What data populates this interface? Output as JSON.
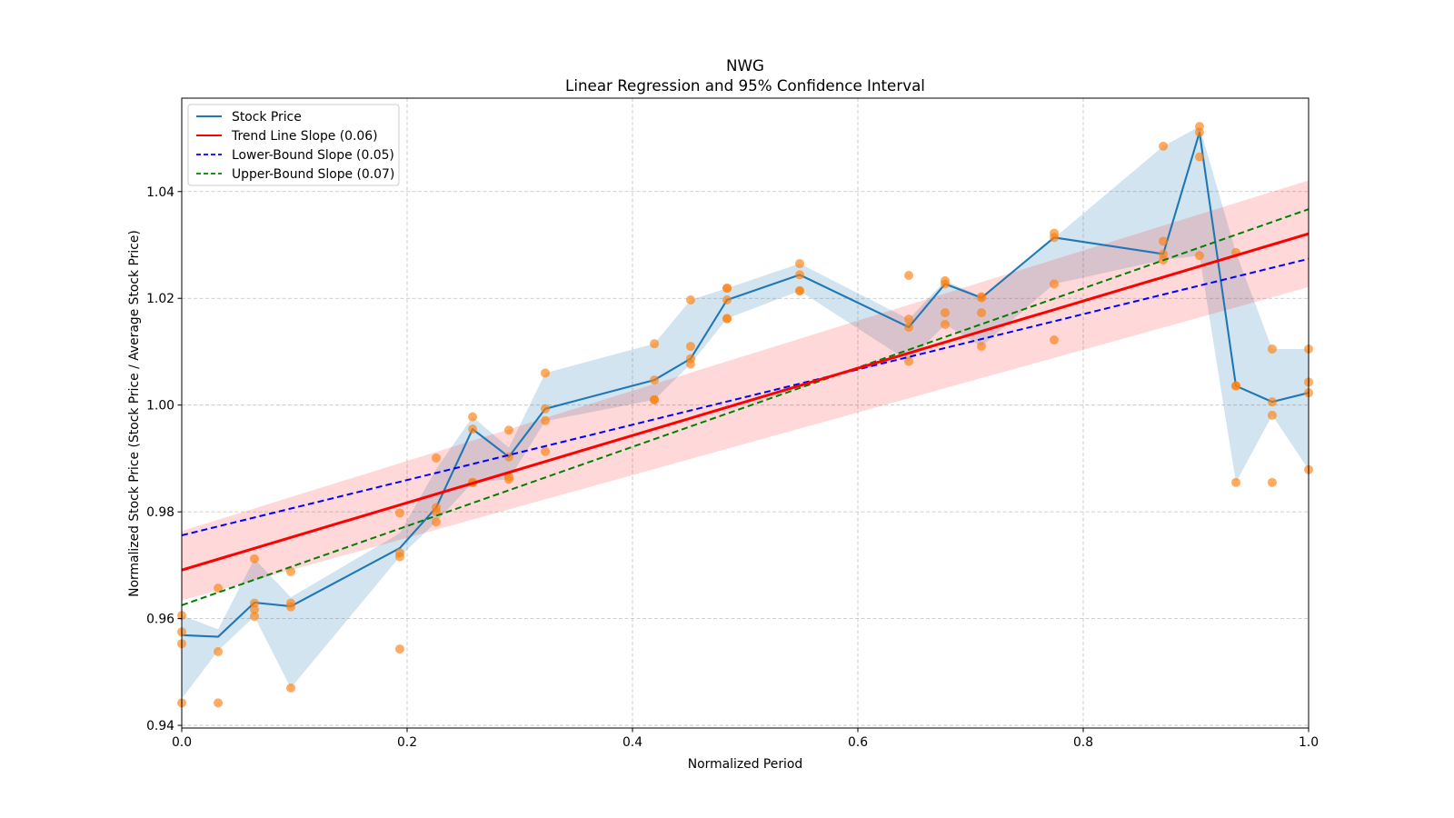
{
  "chart_data": {
    "type": "line",
    "title": "NWG",
    "subtitle": "Linear Regression and 95% Confidence Interval",
    "xlabel": "Normalized Period",
    "ylabel": "Normalized Stock Price (Stock Price / Average Stock Price)",
    "xlim": [
      0.0,
      1.0
    ],
    "ylim": [
      0.9395,
      1.0575
    ],
    "grid": true,
    "legend_position": "top-left",
    "x_ticks": [
      {
        "value": 0.0,
        "label": "0.0"
      },
      {
        "value": 0.2,
        "label": "0.2"
      },
      {
        "value": 0.4,
        "label": "0.4"
      },
      {
        "value": 0.6,
        "label": "0.6"
      },
      {
        "value": 0.8,
        "label": "0.8"
      },
      {
        "value": 1.0,
        "label": "1.0"
      }
    ],
    "y_ticks": [
      {
        "value": 0.94,
        "label": "0.94"
      },
      {
        "value": 0.96,
        "label": "0.96"
      },
      {
        "value": 0.98,
        "label": "0.98"
      },
      {
        "value": 1.0,
        "label": "1.00"
      },
      {
        "value": 1.02,
        "label": "1.02"
      },
      {
        "value": 1.04,
        "label": "1.04"
      }
    ],
    "colors": {
      "stock_line": "#1f77b4",
      "stock_band": "#1f77b4",
      "scatter": "#ff7f0e",
      "trend": "#ff0000",
      "trend_band": "#ff0000",
      "lower_bound": "#0000ff",
      "upper_bound": "#008000"
    },
    "legend": [
      {
        "label": "Stock Price",
        "color": "#1f77b4",
        "style": "solid"
      },
      {
        "label": "Trend Line Slope (0.06)",
        "color": "#ff0000",
        "style": "solid"
      },
      {
        "label": "Lower-Bound Slope (0.05)",
        "color": "#0000ff",
        "style": "dashed"
      },
      {
        "label": "Upper-Bound Slope (0.07)",
        "color": "#008000",
        "style": "dashed"
      }
    ],
    "series": [
      {
        "name": "Stock Price",
        "type": "line",
        "x": [
          0.0,
          0.0323,
          0.0645,
          0.0968,
          0.1935,
          0.2258,
          0.2581,
          0.2903,
          0.3226,
          0.4194,
          0.4516,
          0.4839,
          0.5484,
          0.6452,
          0.6774,
          0.7097,
          0.7742,
          0.871,
          0.9032,
          0.9355,
          0.9677,
          1.0
        ],
        "y": [
          0.9569,
          0.9566,
          0.963,
          0.9623,
          0.9732,
          0.9808,
          0.9955,
          0.9903,
          0.9993,
          1.0047,
          1.0087,
          1.0197,
          1.0244,
          1.0146,
          1.0227,
          1.0201,
          1.0314,
          1.0283,
          1.0511,
          1.0036,
          1.0006,
          1.0023
        ],
        "band_lower": [
          0.945,
          0.954,
          0.9604,
          0.947,
          0.9716,
          0.9781,
          0.9855,
          0.9861,
          0.997,
          1.001,
          1.0077,
          1.0162,
          1.0214,
          1.0082,
          1.0151,
          1.011,
          1.0227,
          1.0272,
          1.028,
          0.9855,
          0.9981,
          0.9879
        ],
        "band_upper": [
          0.9606,
          0.958,
          0.9712,
          0.964,
          0.976,
          0.988,
          0.9978,
          0.992,
          1.006,
          1.0115,
          1.0197,
          1.0219,
          1.0265,
          1.0161,
          1.0233,
          1.0203,
          1.0313,
          1.0485,
          1.0522,
          1.0286,
          1.0105,
          1.0105
        ]
      },
      {
        "name": "Observations",
        "type": "scatter",
        "points": [
          [
            0.0,
            0.9606
          ],
          [
            0.0,
            0.9553
          ],
          [
            0.0,
            0.9442
          ],
          [
            0.0,
            0.9575
          ],
          [
            0.0323,
            0.9657
          ],
          [
            0.0323,
            0.9538
          ],
          [
            0.0323,
            0.9442
          ],
          [
            0.0645,
            0.9712
          ],
          [
            0.0645,
            0.9629
          ],
          [
            0.0645,
            0.9617
          ],
          [
            0.0645,
            0.9604
          ],
          [
            0.0968,
            0.9688
          ],
          [
            0.0968,
            0.9629
          ],
          [
            0.0968,
            0.9622
          ],
          [
            0.0968,
            0.947
          ],
          [
            0.1935,
            0.9798
          ],
          [
            0.1935,
            0.9723
          ],
          [
            0.1935,
            0.9716
          ],
          [
            0.1935,
            0.9543
          ],
          [
            0.2258,
            0.9901
          ],
          [
            0.2258,
            0.9808
          ],
          [
            0.2258,
            0.98
          ],
          [
            0.2258,
            0.9781
          ],
          [
            0.2581,
            0.9978
          ],
          [
            0.2581,
            0.9955
          ],
          [
            0.2581,
            0.9855
          ],
          [
            0.2581,
            0.9855
          ],
          [
            0.2903,
            0.9953
          ],
          [
            0.2903,
            0.9903
          ],
          [
            0.2903,
            0.9866
          ],
          [
            0.2903,
            0.9861
          ],
          [
            0.3226,
            1.006
          ],
          [
            0.3226,
            0.9993
          ],
          [
            0.3226,
            0.9971
          ],
          [
            0.3226,
            0.9913
          ],
          [
            0.4194,
            1.0115
          ],
          [
            0.4194,
            1.0047
          ],
          [
            0.4194,
            1.001
          ],
          [
            0.4194,
            1.001
          ],
          [
            0.4516,
            1.0197
          ],
          [
            0.4516,
            1.011
          ],
          [
            0.4516,
            1.0087
          ],
          [
            0.4516,
            1.0077
          ],
          [
            0.4839,
            1.0219
          ],
          [
            0.4839,
            1.0219
          ],
          [
            0.4839,
            1.0197
          ],
          [
            0.4839,
            1.0162
          ],
          [
            0.4839,
            1.0162
          ],
          [
            0.5484,
            1.0265
          ],
          [
            0.5484,
            1.0244
          ],
          [
            0.5484,
            1.0214
          ],
          [
            0.5484,
            1.0214
          ],
          [
            0.6452,
            1.0243
          ],
          [
            0.6452,
            1.0161
          ],
          [
            0.6452,
            1.0146
          ],
          [
            0.6452,
            1.0082
          ],
          [
            0.6774,
            1.0233
          ],
          [
            0.6774,
            1.0227
          ],
          [
            0.6774,
            1.0173
          ],
          [
            0.6774,
            1.0151
          ],
          [
            0.7097,
            1.0203
          ],
          [
            0.7097,
            1.0201
          ],
          [
            0.7097,
            1.0173
          ],
          [
            0.7097,
            1.011
          ],
          [
            0.7742,
            1.0322
          ],
          [
            0.7742,
            1.0314
          ],
          [
            0.7742,
            1.0227
          ],
          [
            0.7742,
            1.0122
          ],
          [
            0.871,
            1.0485
          ],
          [
            0.871,
            1.0307
          ],
          [
            0.871,
            1.0283
          ],
          [
            0.871,
            1.0272
          ],
          [
            0.9032,
            1.0522
          ],
          [
            0.9032,
            1.0511
          ],
          [
            0.9032,
            1.0465
          ],
          [
            0.9032,
            1.028
          ],
          [
            0.9355,
            1.0286
          ],
          [
            0.9355,
            1.0036
          ],
          [
            0.9355,
            1.0036
          ],
          [
            0.9355,
            0.9855
          ],
          [
            0.9677,
            1.0105
          ],
          [
            0.9677,
            1.0006
          ],
          [
            0.9677,
            0.9981
          ],
          [
            0.9677,
            0.9855
          ],
          [
            1.0,
            1.0105
          ],
          [
            1.0,
            1.0043
          ],
          [
            1.0,
            1.0023
          ],
          [
            1.0,
            0.9879
          ]
        ]
      },
      {
        "name": "Trend Line Slope (0.06)",
        "type": "line",
        "x": [
          0.0,
          1.0
        ],
        "y": [
          0.9691,
          1.0321
        ],
        "band_lower": [
          0.9634,
          1.0221
        ],
        "band_upper": [
          0.9764,
          1.0421
        ]
      },
      {
        "name": "Lower-Bound Slope (0.05)",
        "type": "line",
        "x": [
          0.0,
          1.0
        ],
        "y": [
          0.9756,
          1.0274
        ]
      },
      {
        "name": "Upper-Bound Slope (0.07)",
        "type": "line",
        "x": [
          0.0,
          1.0
        ],
        "y": [
          0.9625,
          1.0367
        ]
      }
    ]
  }
}
